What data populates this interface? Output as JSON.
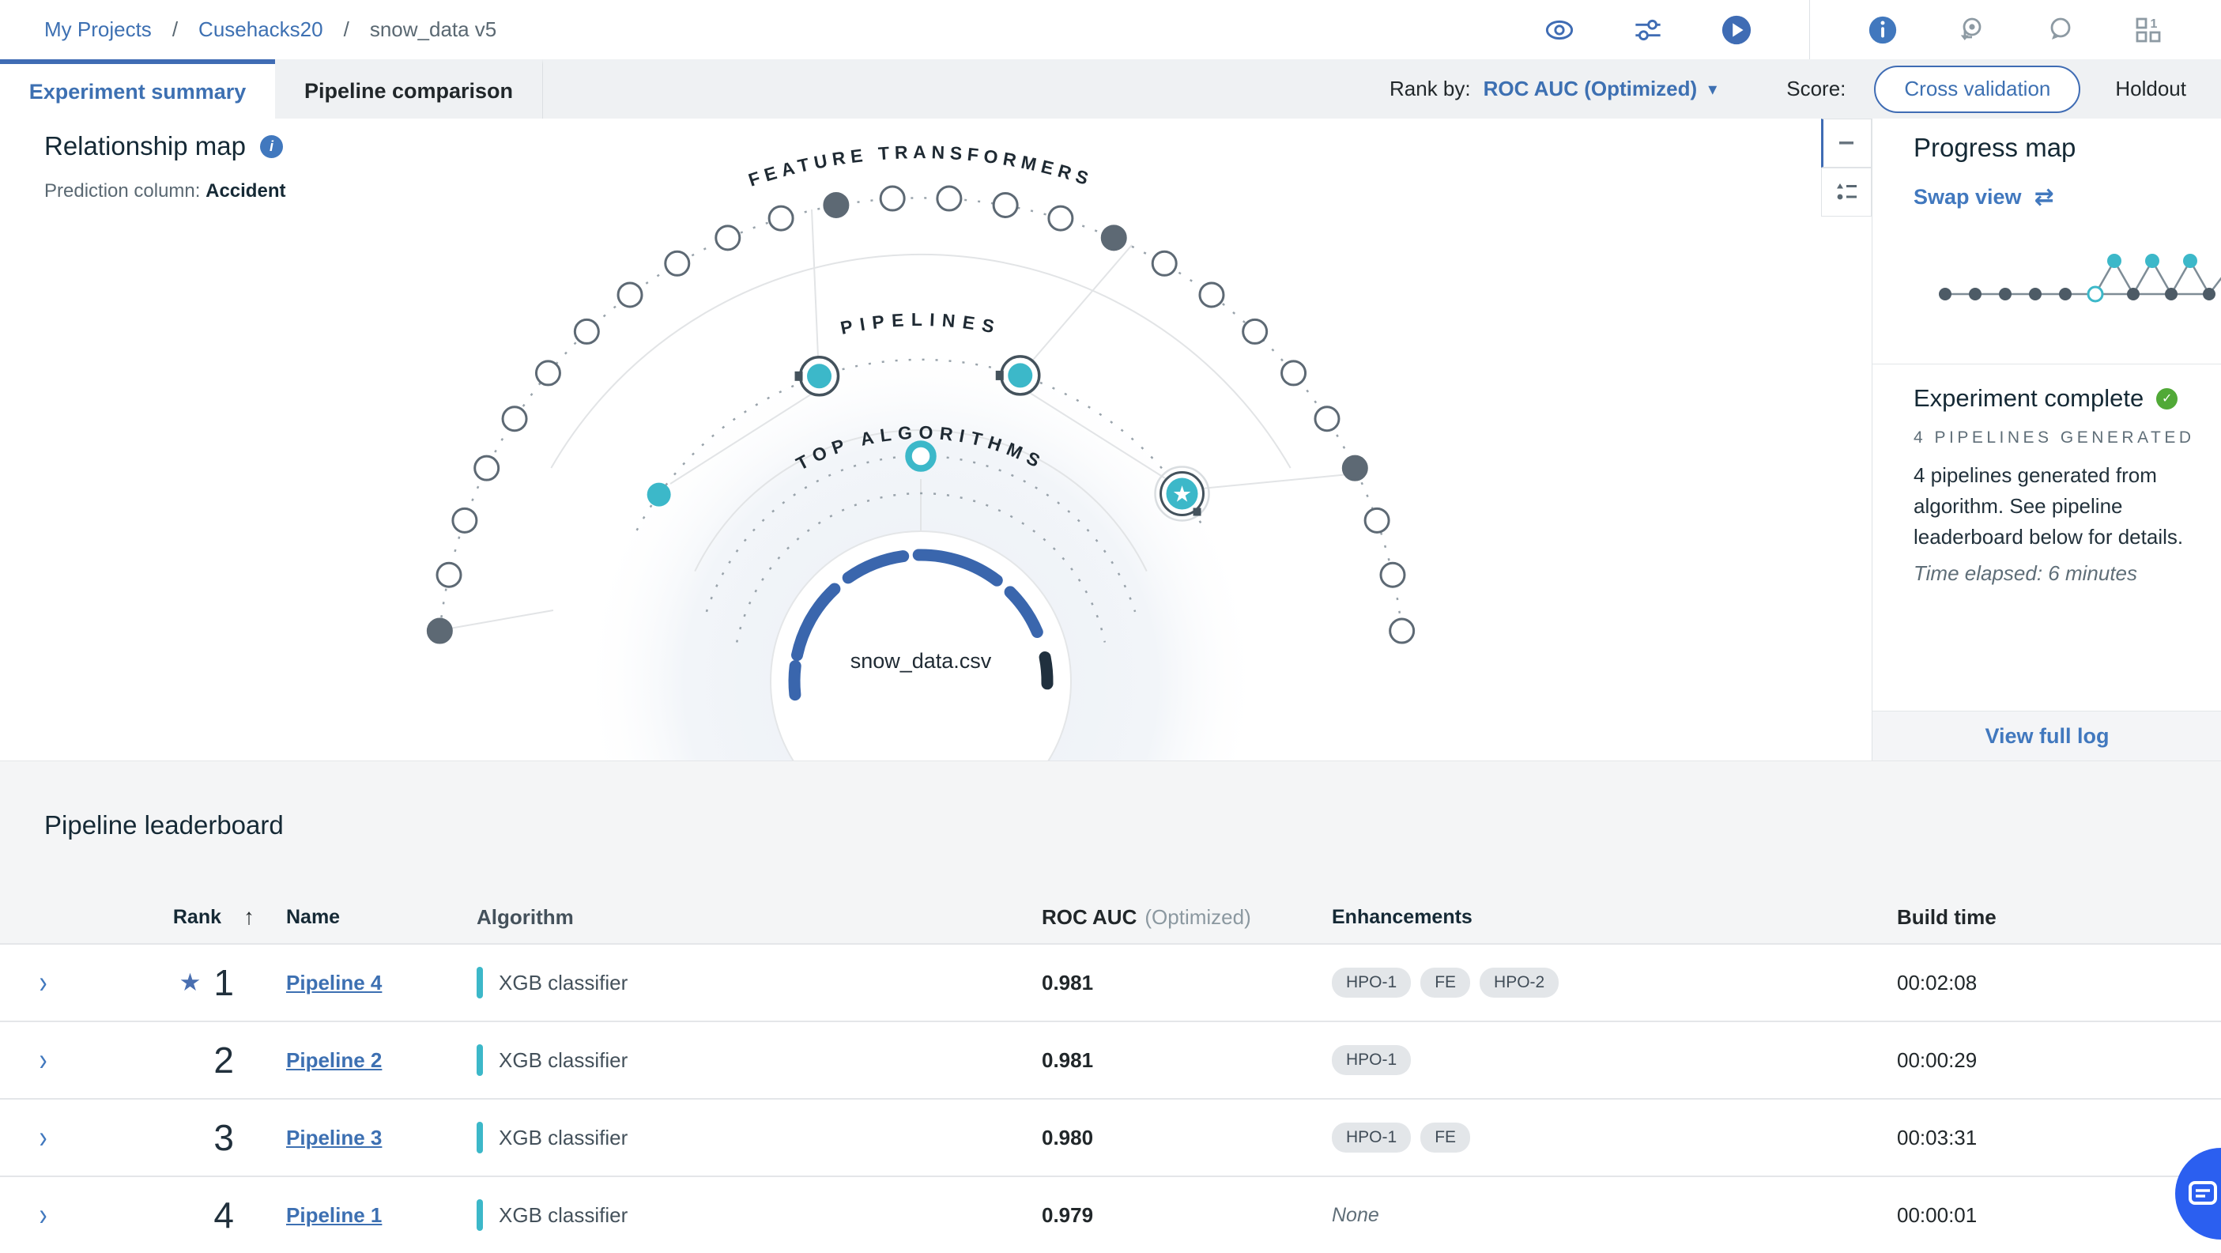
{
  "breadcrumb": {
    "separator": "/",
    "items": [
      {
        "label": "My Projects"
      },
      {
        "label": "Cusehacks20"
      },
      {
        "label": "snow_data v5"
      }
    ]
  },
  "tabs": [
    {
      "label": "Experiment summary"
    },
    {
      "label": "Pipeline comparison"
    }
  ],
  "toolbar": {
    "rank_by_label": "Rank by:",
    "rank_by_value": "ROC AUC (Optimized)",
    "score_label": "Score:",
    "score_selected": "Cross validation",
    "score_alt": "Holdout"
  },
  "relationship_map": {
    "title": "Relationship map",
    "prediction_label": "Prediction column:",
    "prediction_value": "Accident",
    "outer_ring_label": "FEATURE TRANSFORMERS",
    "middle_ring_label": "PIPELINES",
    "inner_ring_label": "TOP ALGORITHMS",
    "center_label": "snow_data.csv"
  },
  "progress_panel": {
    "title": "Progress map",
    "swap_view": "Swap view",
    "status_title": "Experiment complete",
    "pipelines_generated": "4 PIPELINES GENERATED",
    "description": "4 pipelines generated from algorithm. See pipeline leaderboard below for details.",
    "time_elapsed": "Time elapsed: 6 minutes",
    "view_full_log": "View full log"
  },
  "leaderboard": {
    "title": "Pipeline leaderboard",
    "columns": {
      "rank": "Rank",
      "name": "Name",
      "algorithm": "Algorithm",
      "score_bold": "ROC AUC",
      "score_light": "(Optimized)",
      "enhancements": "Enhancements",
      "build_time": "Build time"
    },
    "rows": [
      {
        "rank": "1",
        "starred": true,
        "name": "Pipeline 4",
        "algorithm": "XGB classifier",
        "score": "0.981",
        "enhancements": [
          "HPO-1",
          "FE",
          "HPO-2"
        ],
        "enhancements_text": "",
        "build_time": "00:02:08"
      },
      {
        "rank": "2",
        "starred": false,
        "name": "Pipeline 2",
        "algorithm": "XGB classifier",
        "score": "0.981",
        "enhancements": [
          "HPO-1"
        ],
        "enhancements_text": "",
        "build_time": "00:00:29"
      },
      {
        "rank": "3",
        "starred": false,
        "name": "Pipeline 3",
        "algorithm": "XGB classifier",
        "score": "0.980",
        "enhancements": [
          "HPO-1",
          "FE"
        ],
        "enhancements_text": "",
        "build_time": "00:03:31"
      },
      {
        "rank": "4",
        "starred": false,
        "name": "Pipeline 1",
        "algorithm": "XGB classifier",
        "score": "0.979",
        "enhancements": [],
        "enhancements_text": "None",
        "build_time": "00:00:01"
      }
    ]
  },
  "icons": {
    "star": "★",
    "chevron": "›",
    "check": "✓",
    "swap": "⇄",
    "sort_asc": "↑",
    "caret_down": "▾",
    "info": "i"
  },
  "colors": {
    "accent_blue": "#3d70b2",
    "teal": "#3cb8c9",
    "success_green": "#51a937",
    "fab_blue": "#2b5ff0"
  }
}
